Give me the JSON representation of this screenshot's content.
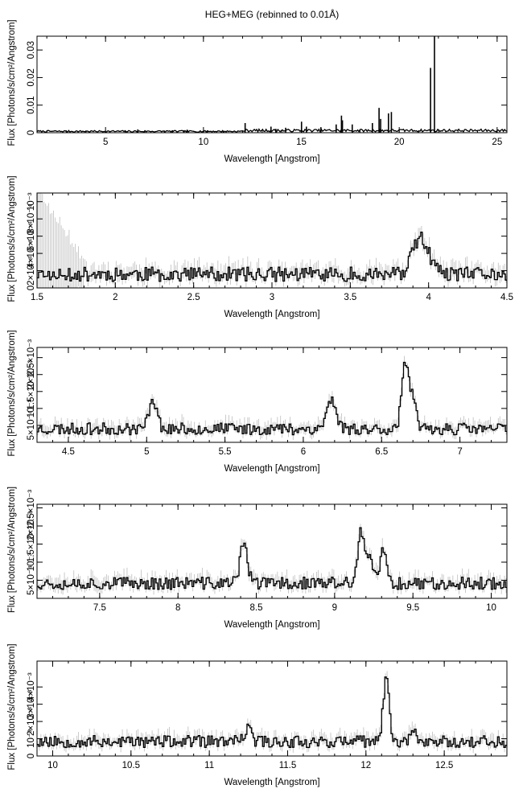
{
  "figure": {
    "title": "HEG+MEG (rebinned to 0.01Å)"
  },
  "chart_data": [
    {
      "type": "line",
      "title": "HEG+MEG (rebinned to 0.01Å)",
      "xlabel": "Wavelength [Angstrom]",
      "ylabel": "Flux [Photons/s/cm²/Angstrom]",
      "xlim": [
        1.5,
        25.5
      ],
      "ylim": [
        0,
        0.035
      ],
      "xticks": [
        5,
        10,
        15,
        20,
        25
      ],
      "yticks": [
        0,
        0.01,
        0.02,
        0.03
      ],
      "ytick_labels": [
        "0",
        "0.01",
        "0.02",
        "0.03"
      ],
      "grid": false,
      "baseline": 0.0005,
      "spikes": [
        {
          "x": 6.65,
          "y": 0.0012
        },
        {
          "x": 8.42,
          "y": 0.0009
        },
        {
          "x": 9.17,
          "y": 0.0011
        },
        {
          "x": 10.2,
          "y": 0.0009
        },
        {
          "x": 12.13,
          "y": 0.0035
        },
        {
          "x": 13.45,
          "y": 0.0022
        },
        {
          "x": 13.7,
          "y": 0.0014
        },
        {
          "x": 14.2,
          "y": 0.0018
        },
        {
          "x": 15.01,
          "y": 0.004
        },
        {
          "x": 15.26,
          "y": 0.0022
        },
        {
          "x": 16.0,
          "y": 0.002
        },
        {
          "x": 16.78,
          "y": 0.003
        },
        {
          "x": 17.05,
          "y": 0.0062
        },
        {
          "x": 17.1,
          "y": 0.0045
        },
        {
          "x": 17.6,
          "y": 0.003
        },
        {
          "x": 18.63,
          "y": 0.0035
        },
        {
          "x": 18.97,
          "y": 0.009
        },
        {
          "x": 19.05,
          "y": 0.005
        },
        {
          "x": 19.45,
          "y": 0.007
        },
        {
          "x": 19.6,
          "y": 0.0075
        },
        {
          "x": 21.6,
          "y": 0.0235
        },
        {
          "x": 21.8,
          "y": 0.035
        },
        {
          "x": 22.1,
          "y": 0.0
        }
      ]
    },
    {
      "type": "line",
      "xlabel": "Wavelength [Angstrom]",
      "ylabel": "Flux [Photons/s/cm²/Angstrom]",
      "xlim": [
        1.5,
        4.5
      ],
      "ylim": [
        0,
        0.0011
      ],
      "xticks": [
        1.5,
        2,
        2.5,
        3,
        3.5,
        4,
        4.5
      ],
      "yticks": [
        0,
        0.0002,
        0.0004,
        0.0006,
        0.0008,
        0.001
      ],
      "ytick_labels": [
        "0",
        "2×10⁻⁴",
        "4×10⁻⁴",
        "6×10⁻⁴",
        "8×10⁻⁴",
        "10⁻³"
      ],
      "grid": false,
      "baseline": 0.00015,
      "noise": 0.00012,
      "lines": [
        {
          "x": 3.95,
          "y": 0.00042,
          "w": 0.05
        }
      ],
      "seed": 11
    },
    {
      "type": "line",
      "xlabel": "Wavelength [Angstrom]",
      "ylabel": "Flux [Photons/s/cm²/Angstrom]",
      "xlim": [
        4.3,
        7.3
      ],
      "ylim": [
        0,
        0.0028
      ],
      "xticks": [
        4.5,
        5,
        5.5,
        6,
        6.5,
        7
      ],
      "yticks": [
        0.0005,
        0.001,
        0.0015,
        0.002,
        0.0025
      ],
      "ytick_labels": [
        "5×10⁻⁴",
        "10⁻³",
        "1.5×10⁻³",
        "2×10⁻³",
        "2.5×10⁻³"
      ],
      "grid": false,
      "baseline": 0.00038,
      "noise": 0.00025,
      "lines": [
        {
          "x": 5.04,
          "y": 0.0009,
          "w": 0.025
        },
        {
          "x": 6.18,
          "y": 0.00085,
          "w": 0.03
        },
        {
          "x": 6.65,
          "y": 0.0019,
          "w": 0.022
        },
        {
          "x": 6.7,
          "y": 0.0008,
          "w": 0.02
        }
      ],
      "seed": 23
    },
    {
      "type": "line",
      "xlabel": "Wavelength [Angstrom]",
      "ylabel": "Flux [Photons/s/cm²/Angstrom]",
      "xlim": [
        7.1,
        10.1
      ],
      "ylim": [
        0,
        0.0026
      ],
      "xticks": [
        7.5,
        8,
        8.5,
        9,
        9.5,
        10
      ],
      "yticks": [
        0.0005,
        0.001,
        0.0015,
        0.002,
        0.0025
      ],
      "ytick_labels": [
        "5×10⁻⁴",
        "10⁻³",
        "1.5×10⁻³",
        "2×10⁻³",
        "2.5×10⁻³"
      ],
      "grid": false,
      "baseline": 0.0004,
      "noise": 0.00025,
      "lines": [
        {
          "x": 8.42,
          "y": 0.0012,
          "w": 0.022
        },
        {
          "x": 9.17,
          "y": 0.0014,
          "w": 0.022
        },
        {
          "x": 9.23,
          "y": 0.0006,
          "w": 0.02
        },
        {
          "x": 9.31,
          "y": 0.0009,
          "w": 0.02
        }
      ],
      "seed": 37
    },
    {
      "type": "line",
      "xlabel": "Wavelength [Angstrom]",
      "ylabel": "Flux [Photons/s/cm²/Angstrom]",
      "xlim": [
        9.9,
        12.9
      ],
      "ylim": [
        0,
        0.0055
      ],
      "xticks": [
        10,
        10.5,
        11,
        11.5,
        12,
        12.5
      ],
      "yticks": [
        0,
        0.001,
        0.002,
        0.003,
        0.004
      ],
      "ytick_labels": [
        "0",
        "10⁻³",
        "2×10⁻³",
        "3×10⁻³",
        "4×10⁻³"
      ],
      "grid": false,
      "baseline": 0.0008,
      "noise": 0.0005,
      "lines": [
        {
          "x": 12.13,
          "y": 0.0035,
          "w": 0.02
        },
        {
          "x": 11.25,
          "y": 0.0008,
          "w": 0.02
        },
        {
          "x": 12.3,
          "y": 0.0006,
          "w": 0.02
        }
      ],
      "seed": 53
    }
  ]
}
